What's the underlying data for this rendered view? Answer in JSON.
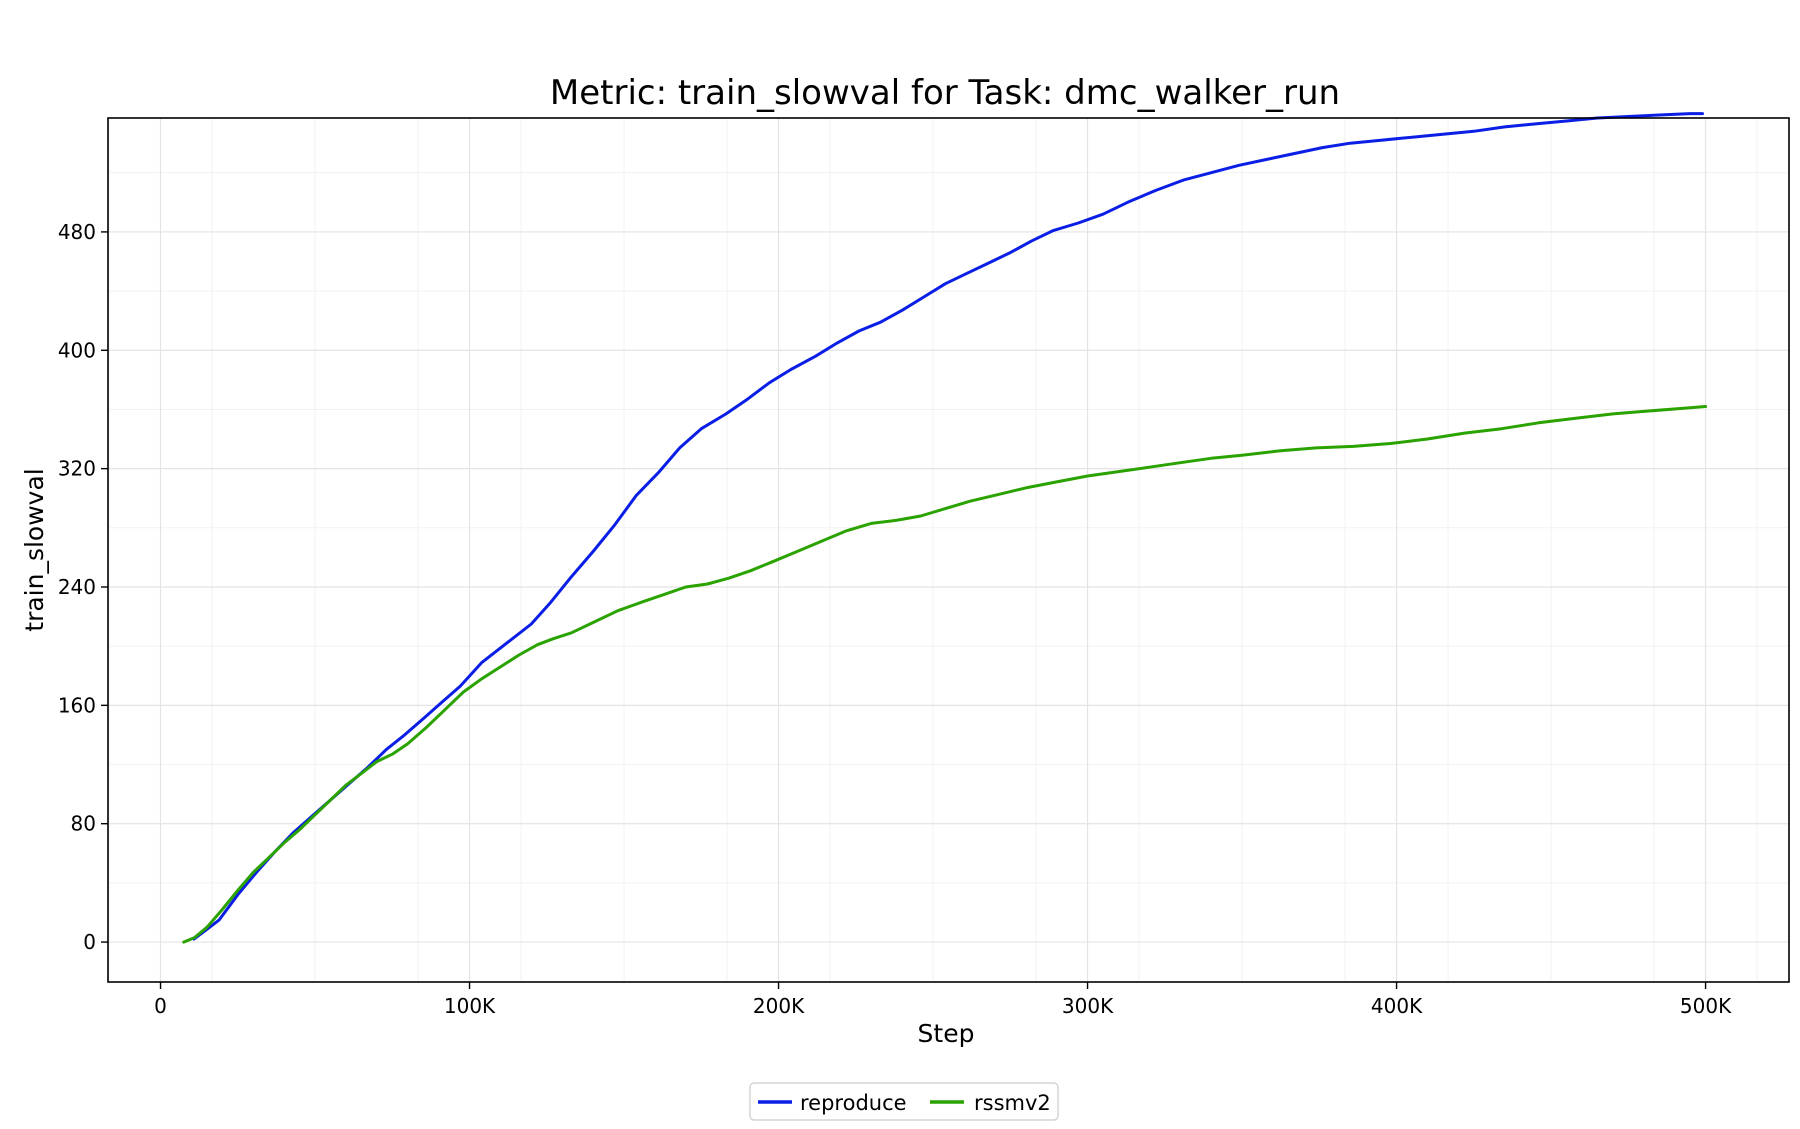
{
  "chart_data": {
    "type": "line",
    "title": "Metric: train_slowval for Task: dmc_walker_run",
    "xlabel": "Step",
    "ylabel": "train_slowval",
    "xlim": [
      -17000,
      527000
    ],
    "ylim": [
      -27,
      557
    ],
    "xticks": [
      0,
      100000,
      200000,
      300000,
      400000,
      500000
    ],
    "xtick_labels": [
      "0",
      "100K",
      "200K",
      "300K",
      "400K",
      "500K"
    ],
    "yticks": [
      0,
      80,
      160,
      240,
      320,
      400,
      480
    ],
    "ytick_labels": [
      "0",
      "80",
      "160",
      "240",
      "320",
      "400",
      "480"
    ],
    "grid": true,
    "legend_position": "bottom-center",
    "series": [
      {
        "name": "reproduce",
        "color": "#0a1ee6",
        "x": [
          10800,
          14000,
          19000,
          25000,
          31000,
          37000,
          43000,
          49000,
          55000,
          61000,
          67000,
          73000,
          79000,
          85000,
          91000,
          97000,
          104000,
          112000,
          120000,
          126000,
          133000,
          140000,
          147000,
          154000,
          161000,
          168000,
          175000,
          183000,
          190000,
          197000,
          204000,
          212000,
          219000,
          226000,
          233000,
          240000,
          247000,
          254000,
          261000,
          268000,
          275000,
          282000,
          289000,
          297000,
          305000,
          313000,
          322000,
          331000,
          340000,
          349000,
          358000,
          367000,
          376000,
          385000,
          395000,
          405000,
          415000,
          425000,
          435000,
          445000,
          455000,
          465000,
          475000,
          485000,
          495000,
          499000
        ],
        "y": [
          2,
          7,
          15,
          32,
          47,
          61,
          74,
          85,
          96,
          107,
          118,
          130,
          140,
          151,
          162,
          173,
          189,
          202,
          215,
          229,
          247,
          264,
          282,
          302,
          317,
          334,
          347,
          357,
          367,
          378,
          387,
          396,
          405,
          413,
          419,
          427,
          436,
          445,
          452,
          459,
          466,
          474,
          481,
          486,
          492,
          500,
          508,
          515,
          520,
          525,
          529,
          533,
          537,
          540,
          542,
          544,
          546,
          548,
          551,
          553,
          555,
          557,
          558,
          559,
          560,
          560
        ]
      },
      {
        "name": "rssmv2",
        "color": "#2aa300",
        "x": [
          7500,
          11000,
          15000,
          20000,
          25000,
          30000,
          35000,
          40000,
          45000,
          50000,
          55000,
          60000,
          65000,
          70000,
          75000,
          80000,
          86000,
          92000,
          98000,
          104000,
          110000,
          116000,
          122000,
          127000,
          133000,
          140000,
          148000,
          156000,
          163000,
          170000,
          177000,
          184000,
          191000,
          198000,
          206000,
          214000,
          222000,
          230000,
          238000,
          246000,
          254000,
          262000,
          270000,
          280000,
          290000,
          300000,
          310000,
          320000,
          330000,
          340000,
          350000,
          362000,
          374000,
          386000,
          398000,
          410000,
          422000,
          434000,
          446000,
          458000,
          470000,
          482000,
          494000,
          500000
        ],
        "y": [
          0,
          3,
          10,
          22,
          35,
          47,
          57,
          67,
          76,
          86,
          96,
          106,
          114,
          122,
          127,
          134,
          145,
          157,
          169,
          178,
          186,
          194,
          201,
          205,
          209,
          216,
          224,
          230,
          235,
          240,
          242,
          246,
          251,
          257,
          264,
          271,
          278,
          283,
          285,
          288,
          293,
          298,
          302,
          307,
          311,
          315,
          318,
          321,
          324,
          327,
          329,
          332,
          334,
          335,
          337,
          340,
          344,
          347,
          351,
          354,
          357,
          359,
          361,
          362
        ]
      }
    ]
  }
}
